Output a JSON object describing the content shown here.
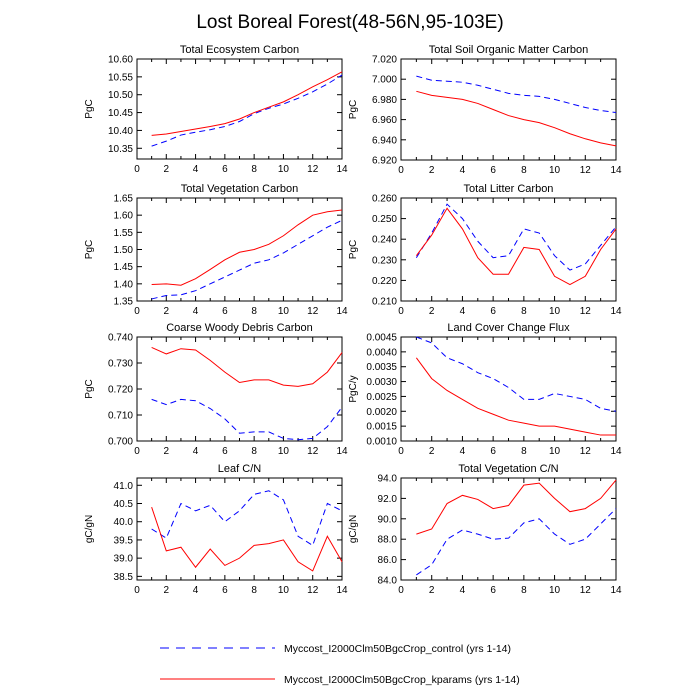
{
  "figure": {
    "title": "Lost Boreal Forest(48-56N,95-103E)"
  },
  "legend": [
    {
      "label": "Myccost_I2000Clm50BgcCrop_control (yrs 1-14)",
      "color": "#0000ff",
      "dash": "dashed"
    },
    {
      "label": "Myccost_I2000Clm50BgcCrop_kparams (yrs 1-14)",
      "color": "#ff0000",
      "dash": "solid"
    }
  ],
  "chart_data": [
    {
      "type": "line",
      "title": "Total Ecosystem Carbon",
      "ylabel": "PgC",
      "xlim": [
        0,
        14
      ],
      "xticks": [
        0,
        2,
        4,
        6,
        8,
        10,
        12,
        14
      ],
      "ylim": [
        10.32,
        10.6
      ],
      "yticks": [
        "10.35",
        "10.40",
        "10.45",
        "10.50",
        "10.55",
        "10.60"
      ],
      "x": [
        1,
        2,
        3,
        4,
        5,
        6,
        7,
        8,
        9,
        10,
        11,
        12,
        13,
        14
      ],
      "series": [
        {
          "name": "Myccost_I2000Clm50BgcCrop_control (yrs 1-14)",
          "values": [
            10.356,
            10.37,
            10.387,
            10.395,
            10.402,
            10.411,
            10.425,
            10.447,
            10.462,
            10.474,
            10.49,
            10.508,
            10.53,
            10.555
          ]
        },
        {
          "name": "Myccost_I2000Clm50BgcCrop_kparams (yrs 1-14)",
          "values": [
            10.386,
            10.39,
            10.397,
            10.404,
            10.411,
            10.419,
            10.432,
            10.45,
            10.465,
            10.48,
            10.5,
            10.522,
            10.542,
            10.564
          ]
        }
      ]
    },
    {
      "type": "line",
      "title": "Total Soil Organic Matter Carbon",
      "ylabel": "PgC",
      "xlim": [
        0,
        14
      ],
      "xticks": [
        0,
        2,
        4,
        6,
        8,
        10,
        12,
        14
      ],
      "ylim": [
        6.92,
        7.02
      ],
      "yticks": [
        "6.920",
        "6.940",
        "6.960",
        "6.980",
        "7.000",
        "7.020"
      ],
      "x": [
        1,
        2,
        3,
        4,
        5,
        6,
        7,
        8,
        9,
        10,
        11,
        12,
        13,
        14
      ],
      "series": [
        {
          "name": "Myccost_I2000Clm50BgcCrop_control (yrs 1-14)",
          "values": [
            7.003,
            6.999,
            6.998,
            6.997,
            6.994,
            6.99,
            6.986,
            6.984,
            6.983,
            6.98,
            6.976,
            6.972,
            6.969,
            6.967
          ]
        },
        {
          "name": "Myccost_I2000Clm50BgcCrop_kparams (yrs 1-14)",
          "values": [
            6.988,
            6.984,
            6.982,
            6.98,
            6.976,
            6.97,
            6.964,
            6.96,
            6.957,
            6.952,
            6.946,
            6.941,
            6.937,
            6.934
          ]
        }
      ]
    },
    {
      "type": "line",
      "title": "Total Vegetation Carbon",
      "ylabel": "PgC",
      "xlim": [
        0,
        14
      ],
      "xticks": [
        0,
        2,
        4,
        6,
        8,
        10,
        12,
        14
      ],
      "ylim": [
        1.35,
        1.65
      ],
      "yticks": [
        "1.35",
        "1.40",
        "1.45",
        "1.50",
        "1.55",
        "1.60",
        "1.65"
      ],
      "x": [
        1,
        2,
        3,
        4,
        5,
        6,
        7,
        8,
        9,
        10,
        11,
        12,
        13,
        14
      ],
      "series": [
        {
          "name": "Myccost_I2000Clm50BgcCrop_control (yrs 1-14)",
          "values": [
            1.356,
            1.366,
            1.368,
            1.38,
            1.4,
            1.42,
            1.44,
            1.46,
            1.47,
            1.49,
            1.515,
            1.54,
            1.565,
            1.585
          ]
        },
        {
          "name": "Myccost_I2000Clm50BgcCrop_kparams (yrs 1-14)",
          "values": [
            1.398,
            1.4,
            1.396,
            1.415,
            1.442,
            1.47,
            1.492,
            1.5,
            1.515,
            1.54,
            1.572,
            1.6,
            1.61,
            1.615
          ]
        }
      ]
    },
    {
      "type": "line",
      "title": "Total Litter Carbon",
      "ylabel": "PgC",
      "xlim": [
        0,
        14
      ],
      "xticks": [
        0,
        2,
        4,
        6,
        8,
        10,
        12,
        14
      ],
      "ylim": [
        0.21,
        0.26
      ],
      "yticks": [
        "0.210",
        "0.220",
        "0.230",
        "0.240",
        "0.250",
        "0.260"
      ],
      "x": [
        1,
        2,
        3,
        4,
        5,
        6,
        7,
        8,
        9,
        10,
        11,
        12,
        13,
        14
      ],
      "series": [
        {
          "name": "Myccost_I2000Clm50BgcCrop_control (yrs 1-14)",
          "values": [
            0.231,
            0.243,
            0.257,
            0.25,
            0.239,
            0.231,
            0.232,
            0.245,
            0.243,
            0.232,
            0.225,
            0.228,
            0.237,
            0.246
          ]
        },
        {
          "name": "Myccost_I2000Clm50BgcCrop_kparams (yrs 1-14)",
          "values": [
            0.232,
            0.242,
            0.255,
            0.245,
            0.231,
            0.223,
            0.223,
            0.236,
            0.235,
            0.222,
            0.218,
            0.222,
            0.235,
            0.245
          ]
        }
      ]
    },
    {
      "type": "line",
      "title": "Coarse Woody Debris Carbon",
      "ylabel": "PgC",
      "xlim": [
        0,
        14
      ],
      "xticks": [
        0,
        2,
        4,
        6,
        8,
        10,
        12,
        14
      ],
      "ylim": [
        0.7,
        0.74
      ],
      "yticks": [
        "0.700",
        "0.710",
        "0.720",
        "0.730",
        "0.740"
      ],
      "x": [
        1,
        2,
        3,
        4,
        5,
        6,
        7,
        8,
        9,
        10,
        11,
        12,
        13,
        14
      ],
      "series": [
        {
          "name": "Myccost_I2000Clm50BgcCrop_control (yrs 1-14)",
          "values": [
            0.716,
            0.714,
            0.716,
            0.7155,
            0.7125,
            0.7085,
            0.703,
            0.7035,
            0.7035,
            0.701,
            0.7005,
            0.701,
            0.7055,
            0.713
          ]
        },
        {
          "name": "Myccost_I2000Clm50BgcCrop_kparams (yrs 1-14)",
          "values": [
            0.736,
            0.7335,
            0.7355,
            0.735,
            0.731,
            0.7265,
            0.7225,
            0.7235,
            0.7235,
            0.7215,
            0.721,
            0.722,
            0.7265,
            0.734
          ]
        }
      ]
    },
    {
      "type": "line",
      "title": "Land Cover Change Flux",
      "ylabel": "PgC/y",
      "xlim": [
        0,
        14
      ],
      "xticks": [
        0,
        2,
        4,
        6,
        8,
        10,
        12,
        14
      ],
      "ylim": [
        0.001,
        0.0045
      ],
      "yticks": [
        "0.0010",
        "0.0015",
        "0.0020",
        "0.0025",
        "0.0030",
        "0.0035",
        "0.0040",
        "0.0045"
      ],
      "x": [
        1,
        2,
        3,
        4,
        5,
        6,
        7,
        8,
        9,
        10,
        11,
        12,
        13,
        14
      ],
      "series": [
        {
          "name": "Myccost_I2000Clm50BgcCrop_control (yrs 1-14)",
          "values": [
            0.0045,
            0.0043,
            0.0038,
            0.0036,
            0.0033,
            0.0031,
            0.0028,
            0.0024,
            0.0024,
            0.0026,
            0.0025,
            0.0024,
            0.0021,
            0.002
          ]
        },
        {
          "name": "Myccost_I2000Clm50BgcCrop_kparams (yrs 1-14)",
          "values": [
            0.0038,
            0.0031,
            0.0027,
            0.0024,
            0.0021,
            0.0019,
            0.0017,
            0.0016,
            0.0015,
            0.0015,
            0.0014,
            0.0013,
            0.0012,
            0.0012
          ]
        }
      ]
    },
    {
      "type": "line",
      "title": "Leaf C/N",
      "ylabel": "gC/gN",
      "xlim": [
        0,
        14
      ],
      "xticks": [
        0,
        2,
        4,
        6,
        8,
        10,
        12,
        14
      ],
      "ylim": [
        38.4,
        41.2
      ],
      "yticks": [
        "38.5",
        "39.0",
        "39.5",
        "40.0",
        "40.5",
        "41.0"
      ],
      "x": [
        1,
        2,
        3,
        4,
        5,
        6,
        7,
        8,
        9,
        10,
        11,
        12,
        13,
        14
      ],
      "series": [
        {
          "name": "Myccost_I2000Clm50BgcCrop_control (yrs 1-14)",
          "values": [
            39.8,
            39.55,
            40.5,
            40.3,
            40.45,
            40.0,
            40.3,
            40.75,
            40.85,
            40.6,
            39.6,
            39.35,
            40.5,
            40.3
          ]
        },
        {
          "name": "Myccost_I2000Clm50BgcCrop_kparams (yrs 1-14)",
          "values": [
            40.4,
            39.2,
            39.3,
            38.75,
            39.25,
            38.8,
            39.0,
            39.35,
            39.4,
            39.5,
            38.9,
            38.65,
            39.6,
            38.9
          ]
        }
      ]
    },
    {
      "type": "line",
      "title": "Total Vegetation C/N",
      "ylabel": "gC/gN",
      "xlim": [
        0,
        14
      ],
      "xticks": [
        0,
        2,
        4,
        6,
        8,
        10,
        12,
        14
      ],
      "ylim": [
        84.0,
        94.0
      ],
      "yticks": [
        "84.0",
        "86.0",
        "88.0",
        "90.0",
        "92.0",
        "94.0"
      ],
      "x": [
        1,
        2,
        3,
        4,
        5,
        6,
        7,
        8,
        9,
        10,
        11,
        12,
        13,
        14
      ],
      "series": [
        {
          "name": "Myccost_I2000Clm50BgcCrop_control (yrs 1-14)",
          "values": [
            84.5,
            85.5,
            88.0,
            88.9,
            88.5,
            88.0,
            88.1,
            89.6,
            90.0,
            88.5,
            87.5,
            88.0,
            89.5,
            91.0
          ]
        },
        {
          "name": "Myccost_I2000Clm50BgcCrop_kparams (yrs 1-14)",
          "values": [
            88.5,
            89.0,
            91.5,
            92.3,
            91.9,
            91.0,
            91.3,
            93.3,
            93.5,
            92.0,
            90.7,
            91.0,
            92.0,
            93.8
          ]
        }
      ]
    }
  ]
}
